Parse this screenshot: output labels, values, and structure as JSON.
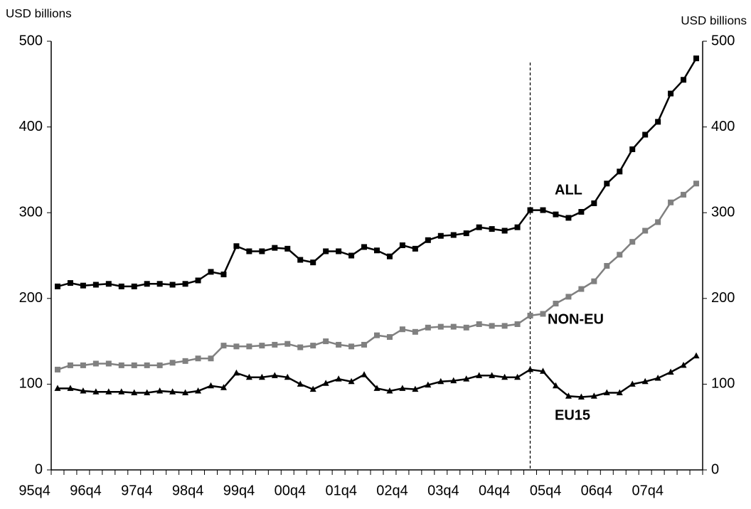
{
  "chart_data": {
    "type": "line",
    "y_label": "USD billions",
    "y2_label": "USD billions",
    "categories": [
      "95q4",
      null,
      null,
      null,
      "96q4",
      null,
      null,
      null,
      "97q4",
      null,
      null,
      null,
      "98q4",
      null,
      null,
      null,
      "99q4",
      null,
      null,
      null,
      "00q4",
      null,
      null,
      null,
      "01q4",
      null,
      null,
      null,
      "02q4",
      null,
      null,
      null,
      "03q4",
      null,
      null,
      null,
      "04q4",
      null,
      null,
      null,
      "05q4",
      null,
      null,
      null,
      "06q4",
      null,
      null,
      null,
      "07q4",
      null,
      null
    ],
    "series": [
      {
        "name": "ALL",
        "color": "#000000",
        "marker": "square",
        "values": [
          214,
          218,
          215,
          216,
          217,
          214,
          214,
          217,
          217,
          216,
          217,
          221,
          231,
          228,
          261,
          255,
          255,
          259,
          258,
          245,
          242,
          255,
          255,
          250,
          260,
          256,
          249,
          262,
          258,
          268,
          273,
          274,
          276,
          283,
          281,
          279,
          283,
          303,
          303,
          298,
          294,
          301,
          311,
          334,
          348,
          374,
          391,
          406,
          439,
          455,
          480
        ]
      },
      {
        "name": "NON-EU",
        "color": "#808080",
        "marker": "square",
        "values": [
          117,
          122,
          122,
          124,
          124,
          122,
          122,
          122,
          122,
          125,
          127,
          130,
          130,
          145,
          144,
          144,
          145,
          146,
          147,
          143,
          145,
          150,
          146,
          144,
          146,
          157,
          155,
          164,
          161,
          166,
          167,
          167,
          166,
          170,
          168,
          168,
          170,
          180,
          182,
          194,
          202,
          211,
          220,
          238,
          251,
          266,
          279,
          289,
          312,
          321,
          334
        ]
      },
      {
        "name": "EU15",
        "color": "#000000",
        "marker": "triangle",
        "values": [
          95,
          95,
          92,
          91,
          91,
          91,
          90,
          90,
          92,
          91,
          90,
          92,
          98,
          96,
          113,
          108,
          108,
          110,
          108,
          100,
          94,
          101,
          106,
          103,
          111,
          95,
          92,
          95,
          94,
          99,
          103,
          104,
          106,
          110,
          110,
          108,
          108,
          117,
          115,
          98,
          86,
          85,
          86,
          90,
          90,
          100,
          103,
          107,
          114,
          122,
          133
        ]
      }
    ],
    "ylim": [
      0,
      500
    ],
    "yticks": [
      0,
      100,
      200,
      300,
      400,
      500
    ],
    "y2lim": [
      0,
      500
    ],
    "y2ticks": [
      0,
      100,
      200,
      300,
      400,
      500
    ],
    "grid": false
  }
}
